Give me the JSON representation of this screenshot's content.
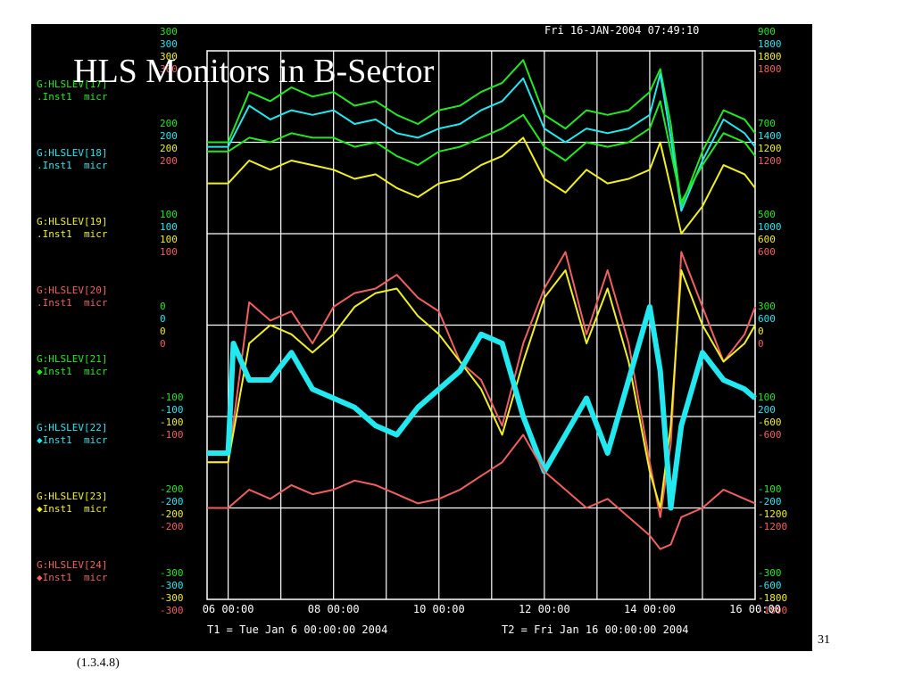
{
  "slide": {
    "title": "HLS Monitors in B-Sector",
    "page_number": "31",
    "reference": "(1.3.4.8)"
  },
  "scope": {
    "timestamp": "Fri 16-JAN-2004 07:49:10",
    "t1_label": "T1 = Tue Jan  6 00:00:00 2004",
    "t2_label": "T2 = Fri Jan 16 00:00:00 2004",
    "colors": {
      "green": "#22e822",
      "cyan": "#22e8f0",
      "yellow": "#f0f022",
      "red": "#f06060",
      "white": "#ffffff",
      "background": "#000000"
    }
  },
  "channels": [
    {
      "name": "G:HLSLEV[17]",
      "desc": ".Inst1  micr",
      "color": "#22e822"
    },
    {
      "name": "G:HLSLEV[18]",
      "desc": ".Inst1  micr",
      "color": "#22e8f0"
    },
    {
      "name": "G:HLSLEV[19]",
      "desc": ".Inst1  micr",
      "color": "#f0f022"
    },
    {
      "name": "G:HLSLEV[20]",
      "desc": ".Inst1  micr",
      "color": "#f06060"
    },
    {
      "name": "G:HLSLEV[21]",
      "desc": "◆Inst1  micr",
      "color": "#22e822"
    },
    {
      "name": "G:HLSLEV[22]",
      "desc": "◆Inst1  micr",
      "color": "#22e8f0"
    },
    {
      "name": "G:HLSLEV[23]",
      "desc": "◆Inst1  micr",
      "color": "#f0f022"
    },
    {
      "name": "G:HLSLEV[24]",
      "desc": "◆Inst1  micr",
      "color": "#f06060"
    }
  ],
  "left_scale": [
    {
      "values": [
        "300",
        "300",
        "300",
        "300"
      ]
    },
    {
      "values": [
        "200",
        "200",
        "200",
        "200"
      ]
    },
    {
      "values": [
        "100",
        "100",
        "100",
        "100"
      ]
    },
    {
      "values": [
        "0",
        "0",
        "0",
        "0"
      ]
    },
    {
      "values": [
        "-100",
        "-100",
        "-100",
        "-100"
      ]
    },
    {
      "values": [
        "-200",
        "-200",
        "-200",
        "-200"
      ]
    },
    {
      "values": [
        "-300",
        "-300",
        "-300",
        "-300"
      ]
    }
  ],
  "right_scale": [
    {
      "values": [
        "900",
        "1800",
        "1800",
        "1800"
      ]
    },
    {
      "values": [
        "700",
        "1400",
        "1200",
        "1200"
      ]
    },
    {
      "values": [
        "500",
        "1000",
        "600",
        "600"
      ]
    },
    {
      "values": [
        "300",
        "600",
        "0",
        "0"
      ]
    },
    {
      "values": [
        "100",
        "200",
        "-600",
        "-600"
      ]
    },
    {
      "values": [
        "-100",
        "-200",
        "-1200",
        "-1200"
      ]
    },
    {
      "values": [
        "-300",
        "-600",
        "-1800",
        "-1800"
      ]
    }
  ],
  "chart_data": {
    "type": "line",
    "xlabel": "",
    "ylabel": "",
    "x_tick_labels": [
      "06 00:00",
      "08 00:00",
      "10 00:00",
      "12 00:00",
      "14 00:00",
      "16 00:00"
    ],
    "x_tick_days": [
      6,
      8,
      10,
      12,
      14,
      16
    ],
    "xlim_days": [
      5.6,
      16
    ],
    "grid": true,
    "series": [
      {
        "name": "G:HLSLEV[17]",
        "color": "#22e822",
        "x": [
          5.6,
          6.0,
          6.4,
          6.8,
          7.2,
          7.6,
          8.0,
          8.4,
          8.8,
          9.2,
          9.6,
          10.0,
          10.4,
          10.8,
          11.2,
          11.6,
          12.0,
          12.4,
          12.8,
          13.2,
          13.6,
          14.0,
          14.2,
          14.4,
          14.6,
          15.0,
          15.4,
          15.8,
          16.0
        ],
        "y": [
          200,
          200,
          255,
          245,
          260,
          250,
          255,
          240,
          245,
          230,
          220,
          235,
          240,
          255,
          265,
          290,
          230,
          215,
          235,
          230,
          235,
          255,
          280,
          220,
          130,
          190,
          235,
          225,
          210
        ]
      },
      {
        "name": "G:HLSLEV[18]",
        "color": "#22e8f0",
        "x": [
          5.6,
          6.0,
          6.4,
          6.8,
          7.2,
          7.6,
          8.0,
          8.4,
          8.8,
          9.2,
          9.6,
          10.0,
          10.4,
          10.8,
          11.2,
          11.6,
          12.0,
          12.4,
          12.8,
          13.2,
          13.6,
          14.0,
          14.2,
          14.4,
          14.6,
          15.0,
          15.4,
          15.8,
          16.0
        ],
        "y": [
          195,
          195,
          240,
          225,
          235,
          230,
          235,
          220,
          225,
          210,
          205,
          215,
          220,
          235,
          245,
          270,
          215,
          200,
          215,
          210,
          215,
          230,
          275,
          205,
          125,
          180,
          225,
          210,
          195
        ]
      },
      {
        "name": "G:HLSLEV[19]",
        "color": "#f0f022",
        "x": [
          5.6,
          6.0,
          6.4,
          6.8,
          7.2,
          7.6,
          8.0,
          8.4,
          8.8,
          9.2,
          9.6,
          10.0,
          10.4,
          10.8,
          11.2,
          11.6,
          12.0,
          12.4,
          12.8,
          13.2,
          13.6,
          14.0,
          14.2,
          14.4,
          14.6,
          15.0,
          15.4,
          15.8,
          16.0
        ],
        "y": [
          155,
          155,
          180,
          170,
          180,
          175,
          170,
          160,
          165,
          150,
          140,
          155,
          160,
          175,
          185,
          205,
          160,
          145,
          170,
          155,
          160,
          170,
          200,
          150,
          100,
          130,
          175,
          165,
          150
        ]
      },
      {
        "name": "G:HLSLEV[21]",
        "color": "#22e822",
        "x": [
          5.6,
          6.0,
          6.4,
          6.8,
          7.2,
          7.6,
          8.0,
          8.4,
          8.8,
          9.2,
          9.6,
          10.0,
          10.4,
          10.8,
          11.2,
          11.6,
          12.0,
          12.4,
          12.8,
          13.2,
          13.6,
          14.0,
          14.2,
          14.4,
          14.6,
          15.0,
          15.4,
          15.8,
          16.0
        ],
        "y": [
          190,
          190,
          205,
          200,
          210,
          205,
          205,
          195,
          200,
          185,
          175,
          190,
          195,
          205,
          215,
          230,
          195,
          180,
          200,
          195,
          200,
          215,
          245,
          190,
          135,
          175,
          210,
          200,
          185
        ]
      },
      {
        "name": "G:HLSLEV[20]",
        "color": "#f06060",
        "x": [
          5.6,
          6.0,
          6.4,
          6.8,
          7.2,
          7.6,
          8.0,
          8.4,
          8.8,
          9.2,
          9.6,
          10.0,
          10.4,
          10.8,
          11.2,
          11.6,
          12.0,
          12.4,
          12.8,
          13.2,
          13.6,
          14.0,
          14.2,
          14.4,
          14.6,
          15.0,
          15.4,
          15.8,
          16.0
        ],
        "y": [
          -150,
          -150,
          25,
          5,
          15,
          -20,
          20,
          35,
          40,
          55,
          30,
          15,
          -40,
          -60,
          -110,
          -20,
          40,
          80,
          -10,
          60,
          -20,
          -150,
          -210,
          -130,
          80,
          20,
          -40,
          -10,
          20
        ]
      },
      {
        "name": "G:HLSLEV[23]",
        "color": "#f0f022",
        "x": [
          5.6,
          6.0,
          6.4,
          6.8,
          7.2,
          7.6,
          8.0,
          8.4,
          8.8,
          9.2,
          9.6,
          10.0,
          10.4,
          10.8,
          11.2,
          11.6,
          12.0,
          12.4,
          12.8,
          13.2,
          13.6,
          14.0,
          14.2,
          14.4,
          14.6,
          15.0,
          15.4,
          15.8,
          16.0
        ],
        "y": [
          -150,
          -150,
          -20,
          0,
          -10,
          -30,
          -10,
          20,
          35,
          40,
          10,
          -10,
          -40,
          -70,
          -120,
          -40,
          30,
          60,
          -20,
          40,
          -40,
          -160,
          -200,
          -110,
          60,
          0,
          -40,
          -20,
          0
        ]
      },
      {
        "name": "G:HLSLEV[22]",
        "color": "#22e8f0",
        "x": [
          5.6,
          6.0,
          6.1,
          6.4,
          6.8,
          7.2,
          7.6,
          8.0,
          8.4,
          8.8,
          9.2,
          9.6,
          10.0,
          10.4,
          10.8,
          11.2,
          11.6,
          12.0,
          12.4,
          12.8,
          13.2,
          13.6,
          14.0,
          14.2,
          14.4,
          14.6,
          15.0,
          15.4,
          15.8,
          16.0
        ],
        "y": [
          -140,
          -140,
          -20,
          -60,
          -60,
          -30,
          -70,
          -80,
          -90,
          -110,
          -120,
          -90,
          -70,
          -50,
          -10,
          -20,
          -100,
          -160,
          -120,
          -80,
          -140,
          -60,
          20,
          -50,
          -200,
          -110,
          -30,
          -60,
          -70,
          -80
        ]
      },
      {
        "name": "G:HLSLEV[24]",
        "color": "#f06060",
        "x": [
          5.6,
          6.0,
          6.4,
          6.8,
          7.2,
          7.6,
          8.0,
          8.4,
          8.8,
          9.2,
          9.6,
          10.0,
          10.4,
          10.8,
          11.2,
          11.6,
          12.0,
          12.4,
          12.8,
          13.2,
          13.6,
          14.0,
          14.2,
          14.4,
          14.6,
          15.0,
          15.4,
          15.8,
          16.0
        ],
        "y": [
          -200,
          -200,
          -180,
          -190,
          -175,
          -185,
          -180,
          -170,
          -175,
          -185,
          -195,
          -190,
          -180,
          -165,
          -150,
          -120,
          -160,
          -180,
          -200,
          -190,
          -210,
          -230,
          -245,
          -240,
          -210,
          -200,
          -180,
          -190,
          -195
        ]
      }
    ]
  }
}
